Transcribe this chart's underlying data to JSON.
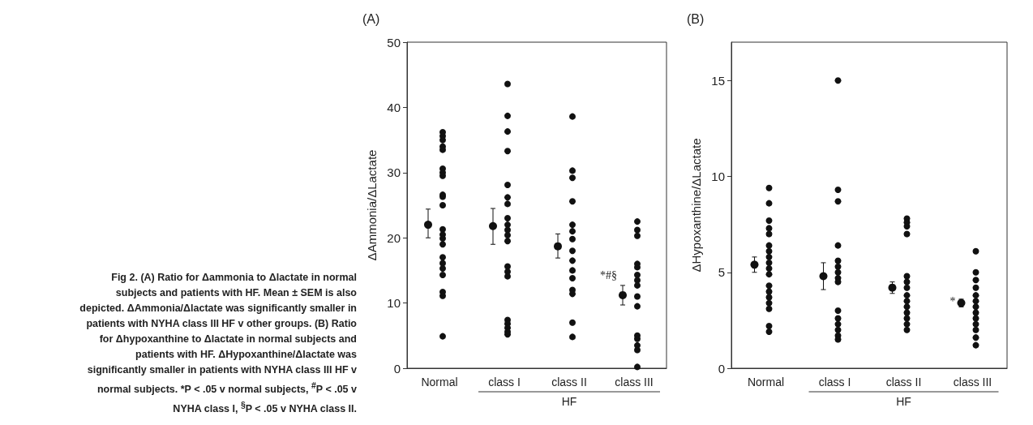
{
  "chart_data": [
    {
      "type": "other",
      "annotations": [
        "Fig 2.  (A) Ratio for Δammonia to Δlactate in normal subjects and patients with HF. Mean ± SEM is also depicted. ΔAmmonia/Δlactate was significantly smaller in patients with NYHA class III HF v other groups. (B) Ratio for Δhypoxanthine to Δlactate in normal subjects and patients with HF. ΔHypoxanthine/Δlactate was significantly smaller in patients with NYHA class III HF v normal subjects. *P < .05 v normal subjects, $^{#}$P < .05 v NYHA class I, $^{§}$P < .05 v NYHA class II."
      ]
    },
    {
      "type": "scatter",
      "title": "(A)",
      "ylabel": "ΔAmmonia/ΔLactate",
      "categories": [
        "Normal",
        "class I",
        "class II",
        "class III"
      ],
      "ylim": [
        0,
        50
      ],
      "yticks": [
        0,
        10,
        20,
        30,
        40,
        50
      ],
      "grid": false,
      "marker": "circle",
      "series": [
        {
          "color": "#111111",
          "x": [
            "Normal",
            "Normal",
            "Normal",
            "Normal",
            "Normal",
            "Normal",
            "Normal",
            "Normal",
            "Normal",
            "Normal",
            "Normal",
            "Normal",
            "Normal",
            "Normal",
            "Normal",
            "Normal",
            "Normal",
            "Normal",
            "Normal",
            "Normal",
            "Normal",
            "Normal",
            "class I",
            "class I",
            "class I",
            "class I",
            "class I",
            "class I",
            "class I",
            "class I",
            "class I",
            "class I",
            "class I",
            "class I",
            "class I",
            "class I",
            "class I",
            "class I",
            "class I",
            "class I",
            "class I",
            "class I",
            "class II",
            "class II",
            "class II",
            "class II",
            "class II",
            "class II",
            "class II",
            "class II",
            "class II",
            "class II",
            "class II",
            "class II",
            "class II",
            "class II",
            "class II",
            "class III",
            "class III",
            "class III",
            "class III",
            "class III",
            "class III",
            "class III",
            "class III",
            "class III",
            "class III",
            "class III",
            "class III",
            "class III",
            "class III",
            "class III"
          ],
          "values": [
            36.2,
            35.6,
            35,
            34,
            33.5,
            30.6,
            30,
            29.5,
            26.6,
            26.3,
            25,
            21.3,
            20.5,
            19.9,
            19,
            17,
            16.1,
            15.3,
            14.3,
            11.7,
            11.1,
            4.9,
            43.6,
            38.7,
            36.3,
            33.3,
            28.1,
            26.2,
            25.2,
            23,
            22,
            21.2,
            20.4,
            19.5,
            15.6,
            14.8,
            14.1,
            7.4,
            6.8,
            6.2,
            5.6,
            5.2,
            38.6,
            30.3,
            29.2,
            25.6,
            22,
            21,
            19.8,
            18,
            16.5,
            15,
            13.8,
            12,
            11.4,
            7,
            4.8,
            22.5,
            21.2,
            20.3,
            16,
            15.5,
            14.3,
            13.5,
            12.7,
            11,
            9.5,
            5,
            4.5,
            3.5,
            2.8,
            0.2
          ]
        },
        {
          "color": "#111111",
          "values": [
            22,
            21.8,
            18.7,
            11.2
          ],
          "errors": [
            [
              20,
              24.4
            ],
            [
              19,
              24.5
            ],
            [
              16.9,
              20.6
            ],
            [
              9.7,
              12.7
            ]
          ]
        }
      ],
      "annotations": [
        "HF",
        {
          "text": "*#§",
          "x": "class III",
          "y": 14.3
        }
      ]
    },
    {
      "type": "scatter",
      "title": "(B)",
      "ylabel": "ΔHypoxanthine/ΔLactate",
      "categories": [
        "Normal",
        "class I",
        "class II",
        "class III"
      ],
      "ylim": [
        0,
        17
      ],
      "yticks": [
        0,
        5,
        10,
        15
      ],
      "grid": false,
      "marker": "circle",
      "series": [
        {
          "color": "#111111",
          "x": [
            "Normal",
            "Normal",
            "Normal",
            "Normal",
            "Normal",
            "Normal",
            "Normal",
            "Normal",
            "Normal",
            "Normal",
            "Normal",
            "Normal",
            "Normal",
            "Normal",
            "Normal",
            "Normal",
            "Normal",
            "Normal",
            "class I",
            "class I",
            "class I",
            "class I",
            "class I",
            "class I",
            "class I",
            "class I",
            "class I",
            "class I",
            "class I",
            "class I",
            "class I",
            "class I",
            "class I",
            "class II",
            "class II",
            "class II",
            "class II",
            "class II",
            "class II",
            "class II",
            "class II",
            "class II",
            "class II",
            "class II",
            "class II",
            "class II",
            "class II",
            "class III",
            "class III",
            "class III",
            "class III",
            "class III",
            "class III",
            "class III",
            "class III",
            "class III",
            "class III",
            "class III",
            "class III",
            "class III"
          ],
          "values": [
            9.4,
            8.6,
            7.7,
            7.3,
            7,
            6.4,
            6.1,
            5.8,
            5.5,
            5.2,
            4.9,
            4.3,
            4,
            3.7,
            3.4,
            3.1,
            2.2,
            1.9,
            15,
            9.3,
            8.7,
            6.4,
            5.6,
            5.3,
            5,
            4.7,
            4.5,
            3,
            2.6,
            2.3,
            2,
            1.7,
            1.5,
            7.8,
            7.6,
            7.4,
            7,
            4.8,
            4.5,
            4.2,
            3.8,
            3.5,
            3.2,
            2.9,
            2.6,
            2.3,
            2,
            6.1,
            5,
            4.6,
            4.2,
            3.8,
            3.5,
            3.2,
            2.9,
            2.6,
            2.3,
            2,
            1.6,
            1.2
          ]
        },
        {
          "color": "#111111",
          "values": [
            5.4,
            4.8,
            4.2,
            3.4
          ],
          "errors": [
            [
              5,
              5.8
            ],
            [
              4.1,
              5.5
            ],
            [
              3.9,
              4.5
            ],
            [
              3.2,
              3.6
            ]
          ]
        }
      ],
      "annotations": [
        "HF",
        {
          "text": "*",
          "x": "class III",
          "y": 3.5
        }
      ]
    }
  ]
}
